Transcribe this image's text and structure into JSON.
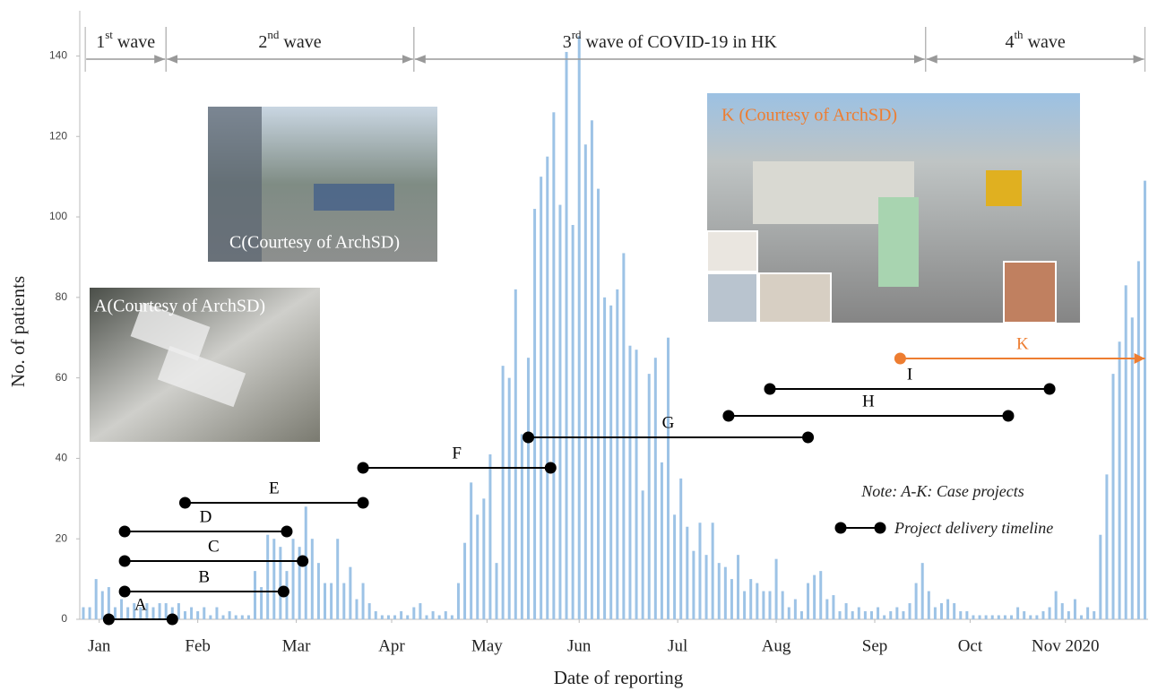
{
  "chart_data": {
    "type": "bar",
    "x": [
      1,
      3,
      5,
      7,
      9,
      11,
      13,
      15,
      17,
      19,
      21,
      23,
      25,
      27,
      29,
      31,
      33,
      35,
      37,
      39,
      41,
      43,
      45,
      47,
      49,
      51,
      53,
      55,
      57,
      59,
      61,
      63,
      65,
      67,
      69,
      71,
      73,
      75,
      77,
      79,
      81,
      83,
      85,
      87,
      89,
      91,
      93,
      95,
      97,
      99,
      101,
      103,
      105,
      107,
      109,
      111,
      113,
      115,
      117,
      119,
      121,
      123,
      125,
      127,
      129,
      131,
      133,
      135,
      137,
      139,
      141,
      143,
      145,
      147,
      149,
      151,
      153,
      155,
      157,
      159,
      161,
      163,
      165,
      167,
      169,
      171,
      173,
      175,
      177,
      179,
      181,
      183,
      185,
      187,
      189,
      191,
      193,
      195,
      197,
      199,
      201,
      203,
      205,
      207,
      209,
      211,
      213,
      215,
      217,
      219,
      221,
      223,
      225,
      227,
      229,
      231,
      233,
      235,
      237,
      239,
      241,
      243,
      245,
      247,
      249,
      251,
      253,
      255,
      257,
      259,
      261,
      263,
      265,
      267,
      269,
      271,
      273,
      275,
      277,
      279,
      281,
      283,
      285,
      287,
      289,
      291,
      293,
      295,
      297,
      299,
      301,
      303,
      305,
      307,
      309,
      311,
      313,
      315,
      317,
      319,
      321,
      323,
      325,
      327,
      329,
      331,
      333,
      335
    ],
    "values": [
      3,
      3,
      10,
      7,
      8,
      3,
      5,
      3,
      4,
      3,
      4,
      3,
      4,
      4,
      3,
      4,
      2,
      3,
      2,
      3,
      1,
      3,
      1,
      2,
      1,
      1,
      1,
      12,
      8,
      21,
      20,
      18,
      12,
      20,
      18,
      28,
      20,
      14,
      9,
      9,
      20,
      9,
      13,
      5,
      9,
      4,
      2,
      1,
      1,
      1,
      2,
      1,
      3,
      4,
      1,
      2,
      1,
      2,
      1,
      9,
      19,
      34,
      26,
      30,
      41,
      14,
      63,
      60,
      82,
      46,
      65,
      102,
      110,
      115,
      126,
      103,
      141,
      98,
      145,
      118,
      124,
      107,
      80,
      78,
      82,
      91,
      68,
      67,
      32,
      61,
      65,
      39,
      70,
      26,
      35,
      23,
      17,
      24,
      16,
      24,
      14,
      13,
      10,
      16,
      7,
      10,
      9,
      7,
      7,
      15,
      7,
      3,
      5,
      2,
      9,
      11,
      12,
      5,
      6,
      2,
      4,
      2,
      3,
      2,
      2,
      3,
      1,
      2,
      3,
      2,
      4,
      9,
      14,
      7,
      3,
      4,
      5,
      4,
      2,
      2,
      1,
      1,
      1,
      1,
      1,
      1,
      1,
      3,
      2,
      1,
      1,
      2,
      3,
      7,
      4,
      2,
      5,
      1,
      3,
      2,
      21,
      36,
      61,
      69,
      83,
      75,
      89,
      109
    ],
    "color": "#9dc3e6",
    "xlim": [
      0,
      336
    ],
    "ylim": [
      0,
      145
    ],
    "yticks": [
      0,
      20,
      40,
      60,
      80,
      100,
      120,
      140
    ],
    "xticks": [
      {
        "value": 6,
        "label": "Jan"
      },
      {
        "value": 37,
        "label": "Feb"
      },
      {
        "value": 68,
        "label": "Mar"
      },
      {
        "value": 98,
        "label": "Apr"
      },
      {
        "value": 128,
        "label": "May"
      },
      {
        "value": 157,
        "label": "Jun"
      },
      {
        "value": 188,
        "label": "Jul"
      },
      {
        "value": 219,
        "label": "Aug"
      },
      {
        "value": 250,
        "label": "Sep"
      },
      {
        "value": 280,
        "label": "Oct"
      },
      {
        "value": 310,
        "label": "Nov 2020"
      }
    ],
    "xlabel": "Date of reporting",
    "ylabel": "No. of patients",
    "waves": [
      {
        "parts": [
          "1",
          "st",
          " wave"
        ],
        "start": 1.6,
        "end": 27
      },
      {
        "parts": [
          "2",
          "nd",
          " wave"
        ],
        "start": 27,
        "end": 105
      },
      {
        "parts": [
          "3",
          "rd",
          " wave of COVID-19 in HK"
        ],
        "start": 105,
        "end": 266
      },
      {
        "parts": [
          "4",
          "th",
          " wave"
        ],
        "start": 266,
        "end": 335
      }
    ],
    "projects": [
      {
        "label": "A",
        "start": 9,
        "end": 29,
        "color": "#000000"
      },
      {
        "label": "B",
        "start": 14,
        "end": 64,
        "color": "#000000"
      },
      {
        "label": "C",
        "start": 14,
        "end": 70,
        "color": "#000000"
      },
      {
        "label": "D",
        "start": 14,
        "end": 65,
        "color": "#000000"
      },
      {
        "label": "E",
        "start": 33,
        "end": 89,
        "color": "#000000"
      },
      {
        "label": "F",
        "start": 89,
        "end": 148,
        "color": "#000000"
      },
      {
        "label": "G",
        "start": 141,
        "end": 229,
        "color": "#000000"
      },
      {
        "label": "H",
        "start": 204,
        "end": 292,
        "color": "#000000"
      },
      {
        "label": "I",
        "start": 217,
        "end": 305,
        "color": "#000000"
      },
      {
        "label": "K",
        "start": 258,
        "end": 335,
        "color": "#ed7d31"
      }
    ],
    "note": "Note: A-K: Case projects",
    "legend_text": "Project delivery timeline",
    "photos": [
      {
        "caption": "C(Courtesy of ArchSD)"
      },
      {
        "caption": "A(Courtesy of ArchSD)"
      },
      {
        "caption": "K (Courtesy of ArchSD)"
      }
    ]
  }
}
